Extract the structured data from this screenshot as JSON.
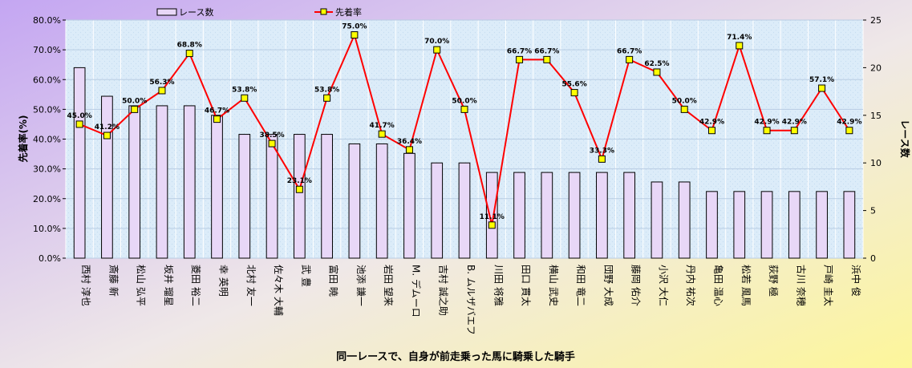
{
  "chart_data": {
    "type": "bar+line",
    "xlabel": "同一レースで、自身が前走乗った馬に騎乗した騎手",
    "ylabel_left": "先着率(%)",
    "ylabel_right": "レース数",
    "ylim_left": [
      0,
      80
    ],
    "ylim_right": [
      0,
      25
    ],
    "left_ticks": [
      "0.0%",
      "10.0%",
      "20.0%",
      "30.0%",
      "40.0%",
      "50.0%",
      "60.0%",
      "70.0%",
      "80.0%"
    ],
    "right_ticks": [
      "0",
      "5",
      "10",
      "15",
      "20",
      "25"
    ],
    "grid": true,
    "legend_position": "top",
    "categories": [
      "西村 淳也",
      "斎藤 新",
      "松山 弘平",
      "坂井 瑠星",
      "菱田 裕二",
      "幸 英明",
      "北村 友一",
      "佐々木 大輔",
      "武 豊",
      "富田 暁",
      "池添 謙一",
      "岩田 望来",
      "M. デムーロ",
      "吉村 誠之助",
      "B. ムルザバエフ",
      "川田 将雅",
      "田口 貫太",
      "横山 武史",
      "和田 竜二",
      "団野 大成",
      "藤岡 佑介",
      "小沢 大仁",
      "丹内 祐次",
      "亀田 温心",
      "松若 風馬",
      "荻野 極",
      "古川 奈穂",
      "戸崎 圭太",
      "浜中 俊"
    ],
    "series": [
      {
        "name": "レース数",
        "kind": "bar",
        "axis": "right",
        "values": [
          20,
          17,
          16,
          16,
          16,
          15,
          13,
          13,
          13,
          13,
          12,
          12,
          11,
          10,
          10,
          9,
          9,
          9,
          9,
          9,
          9,
          8,
          8,
          7,
          7,
          7,
          7,
          7,
          7
        ]
      },
      {
        "name": "先着率",
        "kind": "line",
        "axis": "left",
        "values": [
          45.0,
          41.2,
          50.0,
          56.3,
          68.8,
          46.7,
          53.8,
          38.5,
          23.1,
          53.8,
          75.0,
          41.7,
          36.4,
          70.0,
          50.0,
          11.1,
          66.7,
          66.7,
          55.6,
          33.3,
          66.7,
          62.5,
          50.0,
          42.9,
          71.4,
          42.9,
          42.9,
          57.1,
          42.9
        ],
        "labels": [
          "45.0%",
          "41.2%",
          "50.0%",
          "56.3%",
          "68.8%",
          "46.7%",
          "53.8%",
          "38.5%",
          "23.1%",
          "53.8%",
          "75.0%",
          "41.7%",
          "36.4%",
          "70.0%",
          "50.0%",
          "11.1%",
          "66.7%",
          "66.7%",
          "55.6%",
          "33.3%",
          "66.7%",
          "62.5%",
          "50.0%",
          "42.9%",
          "71.4%",
          "42.9%",
          "42.9%",
          "57.1%",
          "42.9%"
        ]
      }
    ],
    "colors": {
      "bar_fill": "#e8d7f7",
      "bar_stroke": "#000000",
      "line": "#ff0000",
      "marker_fill": "#ffff00",
      "marker_stroke": "#000000",
      "plot_bg": "#dcecf9"
    }
  }
}
